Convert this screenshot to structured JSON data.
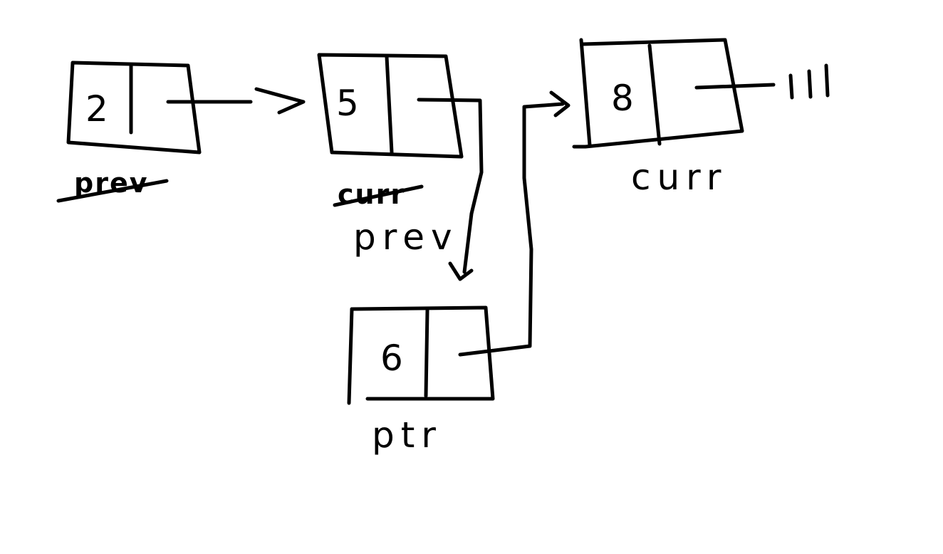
{
  "diagram": {
    "type": "linked-list",
    "nodes": [
      {
        "id": "n2",
        "value": "2"
      },
      {
        "id": "n5",
        "value": "5"
      },
      {
        "id": "n6",
        "value": "6"
      },
      {
        "id": "n8",
        "value": "8"
      }
    ],
    "edges": [
      {
        "from": "n2",
        "to": "n5"
      },
      {
        "from": "n5",
        "to": "n6"
      },
      {
        "from": "n6",
        "to": "n8"
      }
    ],
    "null_terminator": "|||",
    "labels": {
      "node2_crossed": "prev",
      "node5_crossed": "curr",
      "node5": "prev",
      "node6": "ptr",
      "node8": "curr"
    }
  },
  "colors": {
    "ink": "#000000",
    "background": "#ffffff"
  }
}
